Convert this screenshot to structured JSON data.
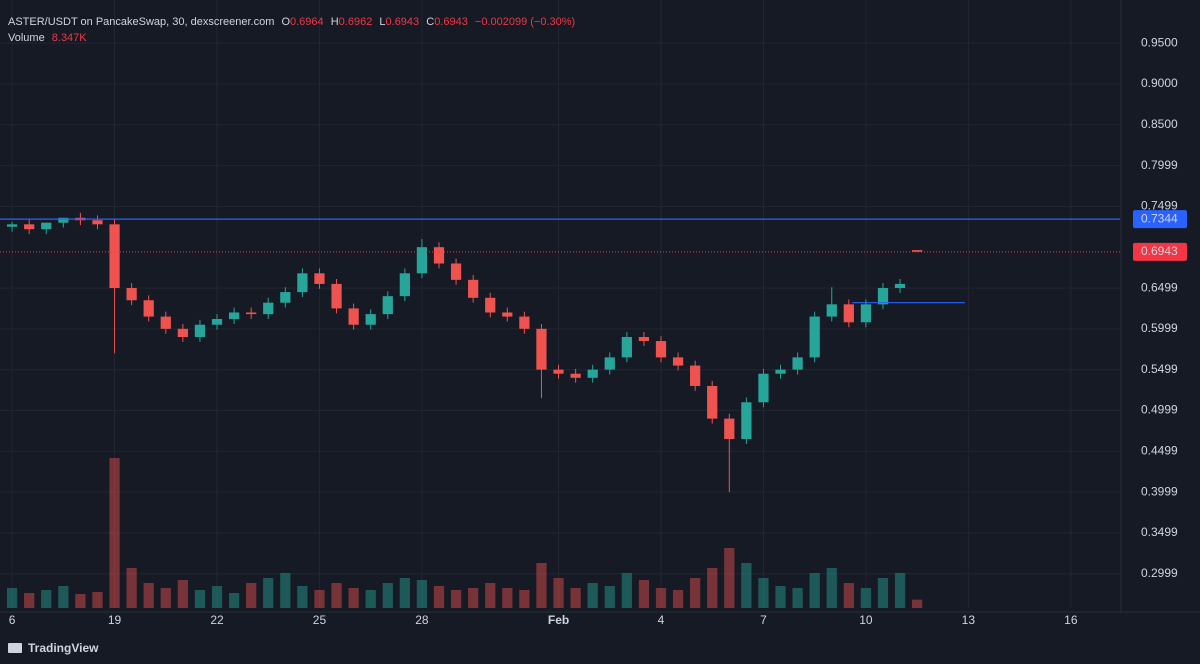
{
  "chart_data": {
    "type": "candlestick",
    "title": "ASTER/USDT on PancakeSwap, 30, dexscreener.com",
    "ohlc_labels": [
      "O",
      "H",
      "L",
      "C"
    ],
    "ohlc_values": [
      0.6964,
      0.6962,
      0.6943,
      0.6943
    ],
    "change": "−0.002099 (−0.30%)",
    "volume_label": "Volume",
    "volume_value": "8.347K",
    "footer": "TradingView",
    "up_color": "#26a69a",
    "down_color": "#ef5350",
    "x": [
      0,
      0.5,
      1,
      1.5,
      2,
      2.5,
      3,
      3.5,
      4,
      4.5,
      5,
      5.5,
      6,
      6.5,
      7,
      7.5,
      8,
      8.5,
      9,
      9.5,
      10,
      10.5,
      11,
      11.5,
      12,
      12.5,
      13,
      13.5,
      14,
      14.5,
      15,
      15.5,
      16,
      16.5,
      17,
      17.5,
      18,
      18.5,
      19,
      19.5,
      20,
      20.5,
      21,
      21.5,
      22,
      22.5,
      23,
      23.5,
      24,
      24.5,
      25,
      25.5,
      26,
      26.5
    ],
    "open": [
      0.725,
      0.728,
      0.722,
      0.73,
      0.736,
      0.733,
      0.728,
      0.65,
      0.635,
      0.615,
      0.6,
      0.59,
      0.605,
      0.612,
      0.62,
      0.618,
      0.632,
      0.645,
      0.668,
      0.655,
      0.625,
      0.605,
      0.618,
      0.64,
      0.668,
      0.7,
      0.68,
      0.66,
      0.638,
      0.62,
      0.615,
      0.6,
      0.55,
      0.545,
      0.54,
      0.55,
      0.565,
      0.59,
      0.585,
      0.565,
      0.555,
      0.53,
      0.49,
      0.465,
      0.51,
      0.545,
      0.55,
      0.565,
      0.615,
      0.63,
      0.608,
      0.63,
      0.65,
      0.6964
    ],
    "high": [
      0.731,
      0.734,
      0.73,
      0.736,
      0.742,
      0.739,
      0.734,
      0.656,
      0.641,
      0.621,
      0.606,
      0.611,
      0.618,
      0.626,
      0.626,
      0.638,
      0.651,
      0.674,
      0.674,
      0.661,
      0.631,
      0.624,
      0.646,
      0.674,
      0.71,
      0.706,
      0.686,
      0.666,
      0.644,
      0.626,
      0.621,
      0.606,
      0.556,
      0.551,
      0.556,
      0.571,
      0.596,
      0.596,
      0.591,
      0.571,
      0.561,
      0.536,
      0.496,
      0.516,
      0.551,
      0.556,
      0.571,
      0.621,
      0.651,
      0.636,
      0.636,
      0.656,
      0.661,
      0.6962
    ],
    "low": [
      0.719,
      0.716,
      0.716,
      0.724,
      0.727,
      0.722,
      0.57,
      0.629,
      0.609,
      0.594,
      0.584,
      0.584,
      0.599,
      0.606,
      0.612,
      0.612,
      0.626,
      0.639,
      0.649,
      0.619,
      0.599,
      0.599,
      0.612,
      0.634,
      0.662,
      0.674,
      0.654,
      0.632,
      0.614,
      0.609,
      0.594,
      0.515,
      0.539,
      0.534,
      0.534,
      0.544,
      0.559,
      0.579,
      0.559,
      0.549,
      0.524,
      0.484,
      0.4,
      0.459,
      0.504,
      0.539,
      0.544,
      0.559,
      0.609,
      0.602,
      0.602,
      0.624,
      0.644,
      0.6943
    ],
    "close": [
      0.728,
      0.722,
      0.73,
      0.736,
      0.733,
      0.728,
      0.65,
      0.635,
      0.615,
      0.6,
      0.59,
      0.605,
      0.612,
      0.62,
      0.618,
      0.632,
      0.645,
      0.668,
      0.655,
      0.625,
      0.605,
      0.618,
      0.64,
      0.668,
      0.7,
      0.68,
      0.66,
      0.638,
      0.62,
      0.615,
      0.6,
      0.55,
      0.545,
      0.54,
      0.55,
      0.565,
      0.59,
      0.585,
      0.565,
      0.555,
      0.53,
      0.49,
      0.465,
      0.51,
      0.545,
      0.55,
      0.565,
      0.615,
      0.63,
      0.608,
      0.63,
      0.65,
      0.655,
      0.6943
    ],
    "volume": [
      20,
      15,
      18,
      22,
      14,
      16,
      150,
      40,
      25,
      20,
      28,
      18,
      22,
      15,
      25,
      30,
      35,
      22,
      18,
      25,
      20,
      18,
      25,
      30,
      28,
      22,
      18,
      20,
      25,
      20,
      18,
      45,
      30,
      20,
      25,
      22,
      35,
      28,
      20,
      18,
      30,
      40,
      60,
      45,
      30,
      22,
      20,
      35,
      40,
      25,
      20,
      30,
      35,
      8.347
    ],
    "ylim": [
      0.258,
      0.993
    ],
    "yticks": [
      {
        "value": 0.95,
        "label": "0.9500"
      },
      {
        "value": 0.9,
        "label": "0.9000"
      },
      {
        "value": 0.85,
        "label": "0.8500"
      },
      {
        "value": 0.7999,
        "label": "0.7999"
      },
      {
        "value": 0.7499,
        "label": "0.7499"
      },
      {
        "value": 0.6499,
        "label": "0.6499"
      },
      {
        "value": 0.5999,
        "label": "0.5999"
      },
      {
        "value": 0.5499,
        "label": "0.5499"
      },
      {
        "value": 0.4999,
        "label": "0.4999"
      },
      {
        "value": 0.4499,
        "label": "0.4499"
      },
      {
        "value": 0.3999,
        "label": "0.3999"
      },
      {
        "value": 0.3499,
        "label": "0.3499"
      },
      {
        "value": 0.2999,
        "label": "0.2999"
      }
    ],
    "xlim": [
      -0.12,
      32.44
    ],
    "xticks": [
      {
        "value": 0,
        "label": "6"
      },
      {
        "value": 3,
        "label": "19"
      },
      {
        "value": 6,
        "label": "22"
      },
      {
        "value": 9,
        "label": "25"
      },
      {
        "value": 12,
        "label": "28"
      },
      {
        "value": 16,
        "label": "Feb"
      },
      {
        "value": 19,
        "label": "4"
      },
      {
        "value": 22,
        "label": "7"
      },
      {
        "value": 25,
        "label": "10"
      },
      {
        "value": 28,
        "label": "13"
      },
      {
        "value": 31,
        "label": "16"
      }
    ],
    "hline": {
      "value": 0.7344,
      "color": "#2962ff"
    },
    "price_line": {
      "value": 0.6943,
      "color": "#f23645"
    },
    "segment": {
      "value": 0.632,
      "x": [
        24.6,
        27.9
      ],
      "color": "#2962ff"
    },
    "grid": true
  }
}
